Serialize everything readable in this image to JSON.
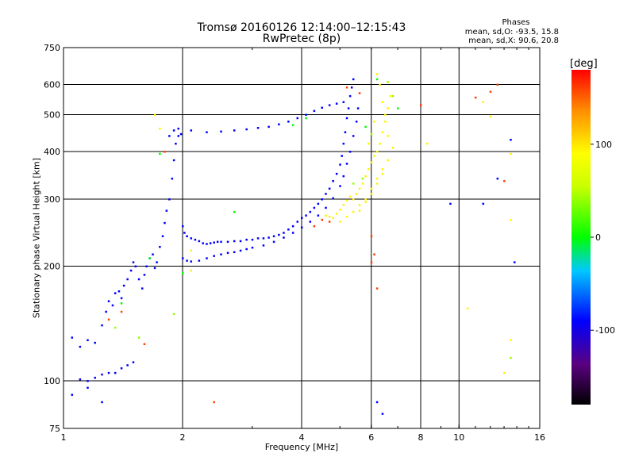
{
  "chart_data": {
    "type": "scatter",
    "title": "Tromsø 20160126 12:14:00–12:15:43",
    "subtitle": "RwPretec (8p)",
    "phase_info": {
      "title": "Phases",
      "line_o": "mean, sd,O: -93.5, 15.8",
      "line_x": "mean, sd,X:  90.6, 20.8"
    },
    "xlabel": "Frequency [MHz]",
    "ylabel": "Stationary phase Virtual Height [km]",
    "x_scale": "log",
    "y_scale": "log",
    "xlim": [
      1,
      16
    ],
    "ylim": [
      75,
      750
    ],
    "x_ticks": [
      1,
      2,
      4,
      6,
      8,
      10,
      16
    ],
    "x_tick_labels": [
      "1",
      "2",
      "4",
      "6",
      "8",
      "10",
      "16"
    ],
    "x_grid": [
      2,
      4,
      6,
      8,
      10
    ],
    "y_ticks": [
      75,
      100,
      200,
      300,
      400,
      500,
      600,
      750
    ],
    "y_tick_labels": [
      "75",
      "100",
      "200",
      "300",
      "400",
      "500",
      "600",
      "750"
    ],
    "y_grid": [
      100,
      200,
      300,
      400,
      500,
      600
    ],
    "grid": true,
    "colorbar": {
      "label": "[deg]",
      "range": [
        -180,
        180
      ],
      "ticks": [
        100,
        0,
        -100
      ],
      "tick_labels": [
        "100",
        "0",
        "-100"
      ],
      "colormap": "rainbow"
    },
    "series": [
      {
        "color_value": -90,
        "points": [
          [
            1.05,
            130
          ],
          [
            1.1,
            123
          ],
          [
            1.15,
            128
          ],
          [
            1.2,
            126
          ],
          [
            1.25,
            140
          ],
          [
            1.28,
            152
          ],
          [
            1.3,
            162
          ],
          [
            1.33,
            158
          ],
          [
            1.35,
            170
          ],
          [
            1.38,
            172
          ],
          [
            1.4,
            165
          ],
          [
            1.42,
            178
          ],
          [
            1.45,
            185
          ],
          [
            1.48,
            195
          ],
          [
            1.5,
            205
          ],
          [
            1.52,
            200
          ],
          [
            1.55,
            185
          ],
          [
            1.58,
            175
          ],
          [
            1.6,
            190
          ],
          [
            1.62,
            200
          ],
          [
            1.65,
            210
          ],
          [
            1.68,
            215
          ],
          [
            1.7,
            198
          ],
          [
            1.72,
            205
          ],
          [
            1.75,
            225
          ],
          [
            1.78,
            240
          ],
          [
            1.8,
            260
          ],
          [
            1.82,
            280
          ],
          [
            1.85,
            300
          ],
          [
            1.88,
            340
          ],
          [
            1.9,
            380
          ],
          [
            1.92,
            420
          ],
          [
            1.95,
            440
          ],
          [
            1.98,
            445
          ],
          [
            2.0,
            255
          ],
          [
            2.02,
            245
          ],
          [
            2.05,
            240
          ],
          [
            2.1,
            237
          ],
          [
            2.15,
            235
          ],
          [
            2.2,
            233
          ],
          [
            2.25,
            230
          ],
          [
            2.3,
            229
          ],
          [
            2.35,
            230
          ],
          [
            2.4,
            231
          ],
          [
            2.45,
            232
          ],
          [
            2.5,
            232
          ],
          [
            2.6,
            232
          ],
          [
            2.7,
            233
          ],
          [
            2.8,
            233
          ],
          [
            2.9,
            235
          ],
          [
            3.0,
            235
          ],
          [
            3.1,
            237
          ],
          [
            3.2,
            237
          ],
          [
            3.3,
            238
          ],
          [
            3.4,
            240
          ],
          [
            3.5,
            242
          ],
          [
            3.6,
            245
          ],
          [
            3.7,
            250
          ],
          [
            3.8,
            255
          ],
          [
            3.9,
            262
          ],
          [
            4.0,
            268
          ],
          [
            4.1,
            272
          ],
          [
            4.2,
            278
          ],
          [
            4.3,
            285
          ],
          [
            4.4,
            292
          ],
          [
            4.5,
            300
          ],
          [
            4.6,
            310
          ],
          [
            4.7,
            320
          ],
          [
            4.8,
            335
          ],
          [
            4.9,
            350
          ],
          [
            5.0,
            370
          ],
          [
            5.05,
            390
          ],
          [
            5.1,
            420
          ],
          [
            5.15,
            450
          ],
          [
            5.2,
            490
          ],
          [
            5.25,
            520
          ],
          [
            5.3,
            560
          ],
          [
            5.35,
            590
          ],
          [
            5.4,
            620
          ],
          [
            2.0,
            210
          ],
          [
            2.05,
            207
          ],
          [
            2.1,
            206
          ],
          [
            2.2,
            207
          ],
          [
            2.3,
            210
          ],
          [
            2.4,
            213
          ],
          [
            2.5,
            215
          ],
          [
            2.6,
            217
          ],
          [
            2.7,
            218
          ],
          [
            2.8,
            220
          ],
          [
            2.9,
            222
          ],
          [
            3.0,
            224
          ],
          [
            3.2,
            227
          ],
          [
            3.4,
            232
          ],
          [
            3.6,
            238
          ],
          [
            3.8,
            245
          ],
          [
            4.0,
            253
          ],
          [
            4.2,
            262
          ],
          [
            4.4,
            272
          ],
          [
            4.6,
            285
          ],
          [
            4.8,
            302
          ],
          [
            5.0,
            325
          ],
          [
            5.1,
            345
          ],
          [
            5.2,
            372
          ],
          [
            5.3,
            400
          ],
          [
            5.4,
            440
          ],
          [
            5.5,
            480
          ],
          [
            5.55,
            520
          ],
          [
            1.85,
            440
          ],
          [
            1.9,
            455
          ],
          [
            1.95,
            460
          ],
          [
            2.1,
            455
          ],
          [
            2.3,
            450
          ],
          [
            2.5,
            452
          ],
          [
            2.7,
            455
          ],
          [
            2.9,
            458
          ],
          [
            3.1,
            462
          ],
          [
            3.3,
            465
          ],
          [
            3.5,
            472
          ],
          [
            3.7,
            480
          ],
          [
            3.9,
            490
          ],
          [
            4.1,
            500
          ],
          [
            4.3,
            512
          ],
          [
            4.5,
            522
          ],
          [
            4.7,
            530
          ],
          [
            4.9,
            535
          ],
          [
            5.1,
            540
          ],
          [
            1.1,
            101
          ],
          [
            1.15,
            100
          ],
          [
            1.2,
            102
          ],
          [
            1.25,
            104
          ],
          [
            1.3,
            105
          ],
          [
            1.35,
            105
          ],
          [
            1.4,
            108
          ],
          [
            1.45,
            110
          ],
          [
            1.5,
            112
          ],
          [
            1.05,
            92
          ],
          [
            1.15,
            96
          ],
          [
            1.25,
            88
          ],
          [
            6.2,
            88
          ],
          [
            6.4,
            82
          ],
          [
            13.5,
            430
          ],
          [
            13.8,
            205
          ],
          [
            9.5,
            292
          ],
          [
            11.5,
            292
          ],
          [
            12.5,
            340
          ]
        ]
      },
      {
        "color_value": 95,
        "points": [
          [
            4.6,
            272
          ],
          [
            4.7,
            270
          ],
          [
            4.8,
            268
          ],
          [
            4.9,
            275
          ],
          [
            5.0,
            282
          ],
          [
            5.1,
            290
          ],
          [
            5.2,
            298
          ],
          [
            5.3,
            305
          ],
          [
            5.4,
            300
          ],
          [
            5.5,
            310
          ],
          [
            5.6,
            320
          ],
          [
            5.7,
            330
          ],
          [
            5.8,
            345
          ],
          [
            5.9,
            360
          ],
          [
            6.0,
            375
          ],
          [
            6.1,
            390
          ],
          [
            6.2,
            400
          ],
          [
            6.3,
            420
          ],
          [
            6.4,
            450
          ],
          [
            6.5,
            480
          ],
          [
            6.6,
            520
          ],
          [
            6.7,
            560
          ],
          [
            5.6,
            280
          ],
          [
            5.8,
            295
          ],
          [
            6.0,
            310
          ],
          [
            6.2,
            330
          ],
          [
            6.4,
            350
          ],
          [
            6.6,
            380
          ],
          [
            6.8,
            410
          ],
          [
            5.0,
            262
          ],
          [
            5.2,
            270
          ],
          [
            5.4,
            278
          ],
          [
            5.6,
            290
          ],
          [
            5.8,
            300
          ],
          [
            6.0,
            320
          ],
          [
            6.2,
            340
          ],
          [
            6.4,
            360
          ],
          [
            6.6,
            440
          ],
          [
            6.3,
            600
          ],
          [
            6.2,
            640
          ],
          [
            6.5,
            500
          ],
          [
            5.9,
            420
          ],
          [
            6.1,
            480
          ],
          [
            6.4,
            540
          ],
          [
            1.7,
            500
          ],
          [
            1.75,
            460
          ],
          [
            2.1,
            220
          ],
          [
            2.1,
            195
          ],
          [
            13.5,
            395
          ],
          [
            13.5,
            265
          ],
          [
            13.5,
            128
          ],
          [
            13.0,
            105
          ],
          [
            12.0,
            495
          ],
          [
            11.5,
            540
          ],
          [
            8.3,
            420
          ],
          [
            10.5,
            155
          ]
        ]
      },
      {
        "color_value": 160,
        "points": [
          [
            4.3,
            255
          ],
          [
            4.5,
            265
          ],
          [
            4.7,
            262
          ],
          [
            5.2,
            590
          ],
          [
            5.6,
            570
          ],
          [
            6.0,
            240
          ],
          [
            6.1,
            215
          ],
          [
            6.0,
            205
          ],
          [
            6.2,
            175
          ],
          [
            11.0,
            555
          ],
          [
            12.5,
            600
          ],
          [
            12.0,
            575
          ],
          [
            13.0,
            335
          ],
          [
            2.4,
            88
          ],
          [
            1.3,
            145
          ],
          [
            1.4,
            152
          ],
          [
            1.6,
            125
          ],
          [
            1.8,
            400
          ],
          [
            8.0,
            530
          ]
        ]
      },
      {
        "color_value": 0,
        "points": [
          [
            1.4,
            160
          ],
          [
            1.65,
            210
          ],
          [
            1.75,
            395
          ],
          [
            2.0,
            192
          ],
          [
            2.7,
            278
          ],
          [
            5.8,
            465
          ],
          [
            6.2,
            620
          ],
          [
            7.0,
            520
          ],
          [
            4.1,
            490
          ],
          [
            3.8,
            470
          ]
        ]
      },
      {
        "color_value": 40,
        "points": [
          [
            6.6,
            610
          ],
          [
            6.8,
            560
          ],
          [
            5.4,
            330
          ],
          [
            5.7,
            340
          ],
          [
            6.0,
            445
          ],
          [
            1.55,
            130
          ],
          [
            1.35,
            138
          ],
          [
            1.9,
            150
          ],
          [
            13.5,
            115
          ]
        ]
      }
    ]
  }
}
